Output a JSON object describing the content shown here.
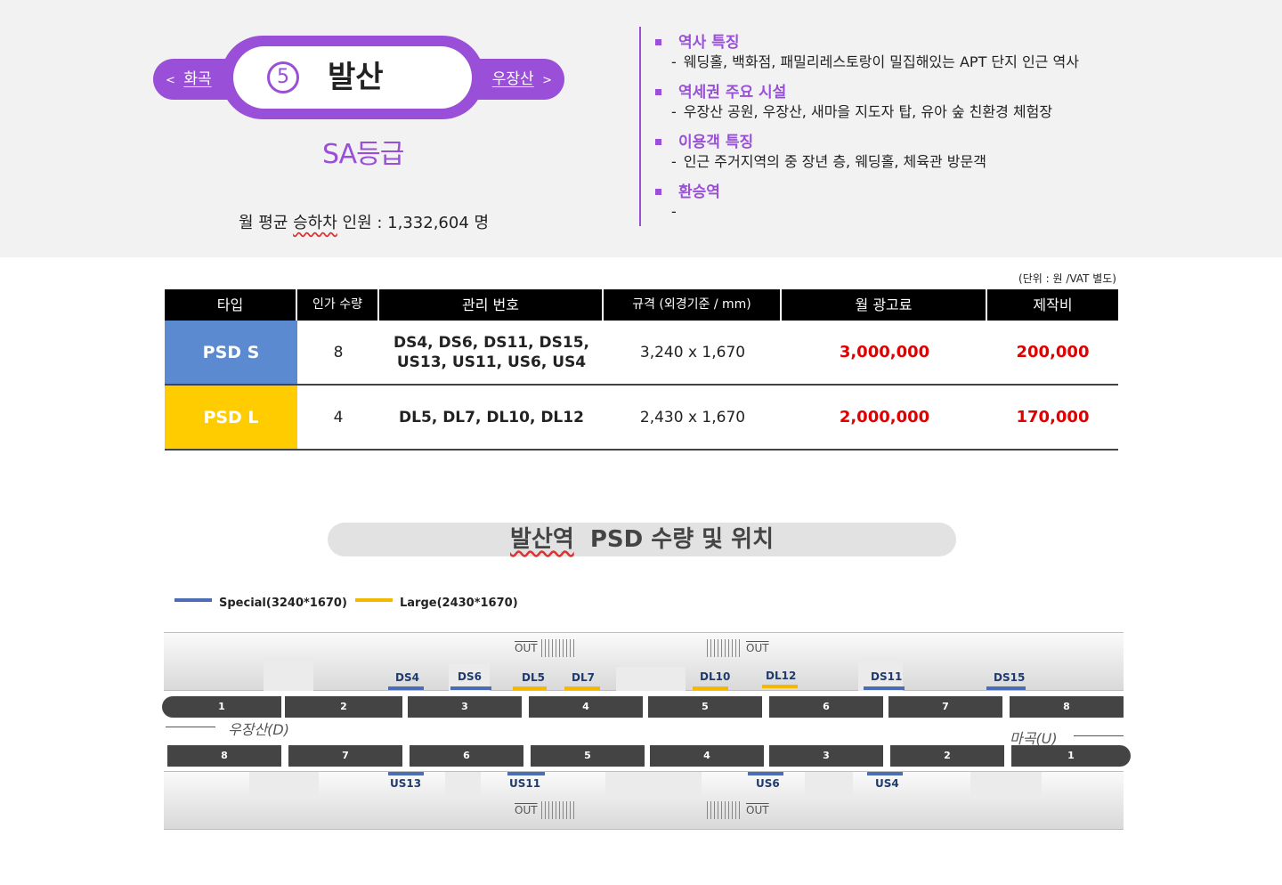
{
  "station": {
    "prev": "화곡",
    "next": "우장산",
    "prev_arrow": "<",
    "next_arrow": ">",
    "line_number": "5",
    "name": "발산",
    "grade": "SA등급",
    "ridership_label_a": "월 평균 ",
    "ridership_label_b": "승하차",
    "ridership_label_c": " 인원 :  1,332,604 명"
  },
  "info": [
    {
      "title": "역사 특징",
      "desc": "웨딩홀, 백화점, 패밀리레스토랑이 밀집해있는 APT 단지 인근 역사"
    },
    {
      "title": "역세권 주요 시설",
      "desc": "우장산 공원, 우장산, 새마을 지도자 탑, 유아 숲 친환경 체험장"
    },
    {
      "title": "이용객 특징",
      "desc": "인근 주거지역의 중 장년 층, 웨딩홀, 체육관 방문객"
    },
    {
      "title": "환승역",
      "desc": ""
    }
  ],
  "table": {
    "unit_note": "(단위 : 원 /VAT 별도)",
    "headers": [
      "타입",
      "인가 수량",
      "관리 번호",
      "규격 (외경기준 / mm)",
      "월 광고료",
      "제작비"
    ],
    "rows": [
      {
        "type": "PSD S",
        "type_color": "#5b8ad0",
        "qty": "8",
        "codes_line1": "DS4, DS6, DS11, DS15,",
        "codes_line2": "US13, US11, US6, US4",
        "size": "3,240 x 1,670",
        "monthly": "3,000,000",
        "production": "200,000"
      },
      {
        "type": "PSD L",
        "type_color": "#ffcc00",
        "qty": "4",
        "codes_line1": "DL5, DL7, DL10, DL12",
        "codes_line2": "",
        "size": "2,430 x 1,670",
        "monthly": "2,000,000",
        "production": "170,000"
      }
    ]
  },
  "map": {
    "title_a": "발산역",
    "title_b": "  PSD 수량 및 위치",
    "legend": [
      {
        "label": "Special(3240*1670)",
        "color": "#4a6db5"
      },
      {
        "label": "Large(2430*1670)",
        "color": "#f5b800"
      }
    ],
    "exit_label": "OUT",
    "direction_down": "우장산(D)",
    "direction_up": "마곡(U)",
    "top_cars": [
      "1",
      "2",
      "3",
      "4",
      "5",
      "6",
      "7",
      "8"
    ],
    "bottom_cars": [
      "8",
      "7",
      "6",
      "5",
      "4",
      "3",
      "2",
      "1"
    ],
    "top_doors": [
      "DS4",
      "DS6",
      "DL5",
      "DL7",
      "DL10",
      "DL12",
      "DS11",
      "DS15"
    ],
    "bottom_doors": [
      "US13",
      "US11",
      "US6",
      "US4"
    ]
  }
}
